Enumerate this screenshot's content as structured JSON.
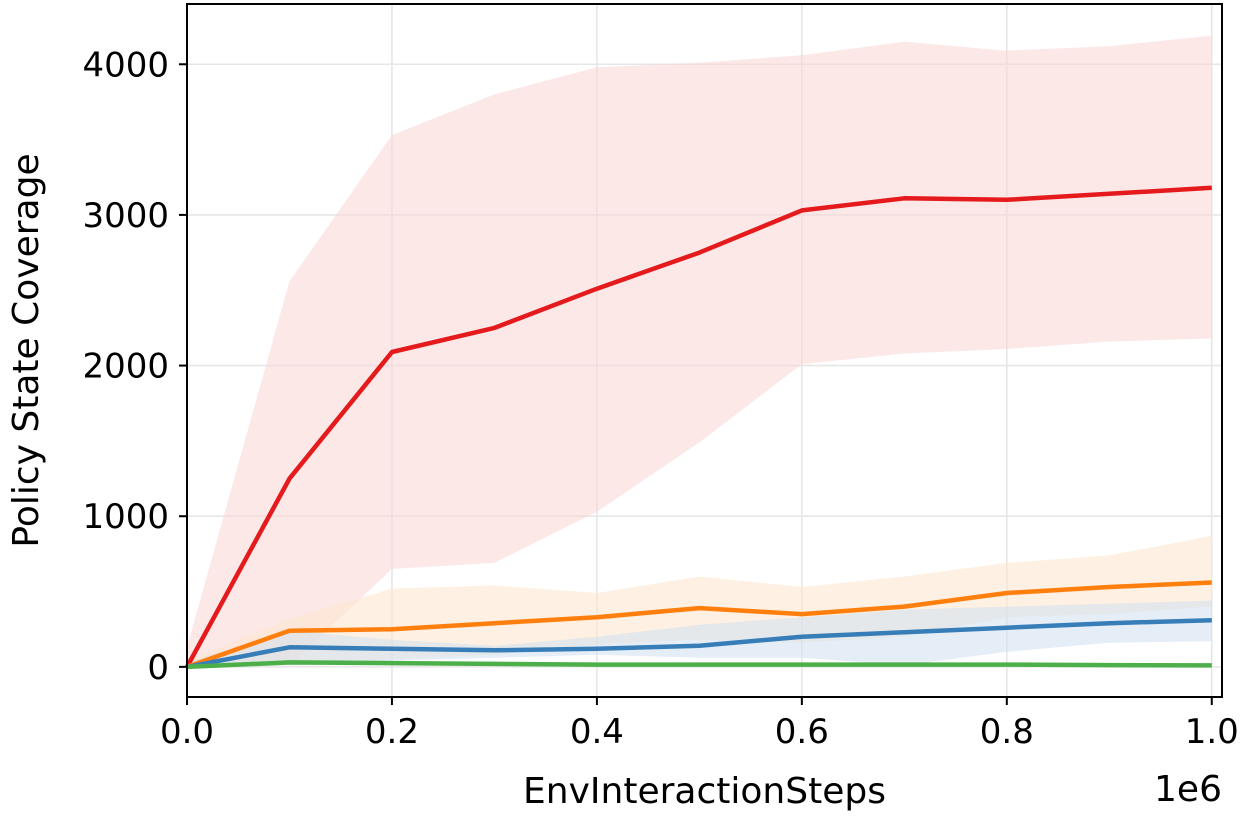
{
  "chart_data": {
    "type": "line",
    "title": "",
    "xlabel": "EnvInteractionSteps",
    "ylabel": "Policy State Coverage",
    "x_offset_text": "1e6",
    "xlim": [
      0,
      1010000
    ],
    "ylim": [
      -200,
      4400
    ],
    "xticks": [
      0,
      200000,
      400000,
      600000,
      800000,
      1000000
    ],
    "xtick_labels": [
      "0.0",
      "0.2",
      "0.4",
      "0.6",
      "0.8",
      "1.0"
    ],
    "yticks": [
      0,
      1000,
      2000,
      3000,
      4000
    ],
    "ytick_labels": [
      "0",
      "1000",
      "2000",
      "3000",
      "4000"
    ],
    "grid": true,
    "legend": "none",
    "x": [
      0,
      100000,
      200000,
      300000,
      400000,
      500000,
      600000,
      700000,
      800000,
      900000,
      1000000
    ],
    "series": [
      {
        "color": "#e41a1c",
        "band_color": "#fbd5d5",
        "values": [
          0,
          1250,
          2090,
          2250,
          2510,
          2750,
          3030,
          3110,
          3100,
          3140,
          3180
        ],
        "upper": [
          130,
          2560,
          3530,
          3800,
          3980,
          4010,
          4060,
          4150,
          4090,
          4120,
          4190
        ],
        "lower": [
          0,
          10,
          650,
          690,
          1030,
          1490,
          2010,
          2080,
          2110,
          2160,
          2180
        ]
      },
      {
        "color": "#ff7f0e",
        "band_color": "#fde5cc",
        "values": [
          0,
          240,
          250,
          290,
          330,
          390,
          350,
          400,
          490,
          530,
          560
        ],
        "upper": [
          40,
          320,
          520,
          540,
          490,
          600,
          530,
          600,
          690,
          740,
          870
        ],
        "lower": [
          0,
          40,
          50,
          80,
          150,
          180,
          160,
          200,
          330,
          350,
          400
        ]
      },
      {
        "color": "#377eb8",
        "band_color": "#cfe0f0",
        "values": [
          0,
          130,
          120,
          110,
          120,
          140,
          200,
          230,
          260,
          290,
          310
        ],
        "upper": [
          30,
          240,
          180,
          140,
          200,
          280,
          330,
          380,
          400,
          420,
          440
        ],
        "lower": [
          0,
          30,
          40,
          60,
          80,
          60,
          60,
          10,
          100,
          160,
          170
        ]
      },
      {
        "color": "#4daf4a",
        "band_color": "#d3ebd2",
        "values": [
          0,
          30,
          25,
          20,
          15,
          15,
          15,
          15,
          15,
          12,
          10
        ],
        "upper": [
          10,
          50,
          40,
          30,
          25,
          25,
          25,
          25,
          25,
          22,
          20
        ],
        "lower": [
          0,
          10,
          10,
          8,
          5,
          5,
          5,
          5,
          5,
          3,
          2
        ]
      }
    ]
  }
}
